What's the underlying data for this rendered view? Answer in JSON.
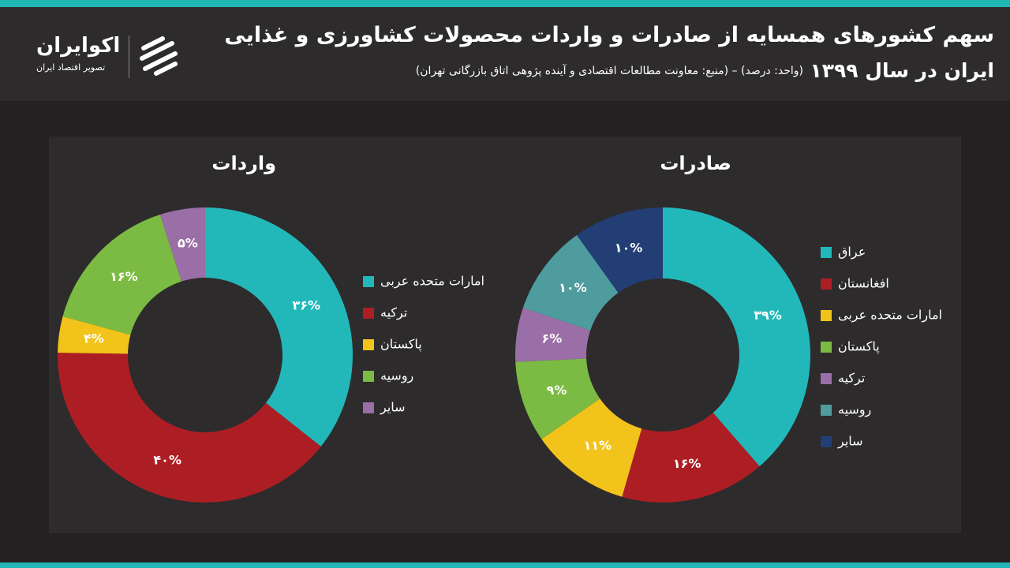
{
  "header": {
    "title_line1": "سهم کشورهای همسایه از صادرات و واردات محصولات کشاورزی و غذایی",
    "title_line2": "ایران در سال ۱۳۹۹",
    "subtitle": "(واحد: درصد) – (منبع: معاونت مطالعات اقتصادی و آینده پژوهی اتاق بازرگانی تهران)",
    "logo_name": "اکوایران",
    "logo_tagline": "تصویر اقتصاد ایران"
  },
  "chart_data": [
    {
      "type": "pie",
      "title": "صادرات",
      "categories": [
        "عراق",
        "افغانستان",
        "امارات متحده عربی",
        "پاکستان",
        "ترکیه",
        "روسیه",
        "سایر"
      ],
      "values": [
        39,
        16,
        11,
        9,
        6,
        10,
        10
      ],
      "value_labels": [
        "۳۹%",
        "۱۶%",
        "۱۱%",
        "۹%",
        "۶%",
        "۱۰%",
        "۱۰%"
      ],
      "colors": [
        "#22b8b9",
        "#ad1e24",
        "#f2c31b",
        "#7cbb43",
        "#9a6ea6",
        "#4f9c9f",
        "#223e74"
      ]
    },
    {
      "type": "pie",
      "title": "واردات",
      "categories": [
        "امارات متحده عربی",
        "ترکیه",
        "پاکستان",
        "روسیه",
        "سایر"
      ],
      "values": [
        36,
        40,
        4,
        16,
        5
      ],
      "value_labels": [
        "۳۶%",
        "۴۰%",
        "۴%",
        "۱۶%",
        "۵%"
      ],
      "colors": [
        "#22b8b9",
        "#ad1e24",
        "#f2c31b",
        "#7cbb43",
        "#9a6ea6"
      ]
    }
  ]
}
